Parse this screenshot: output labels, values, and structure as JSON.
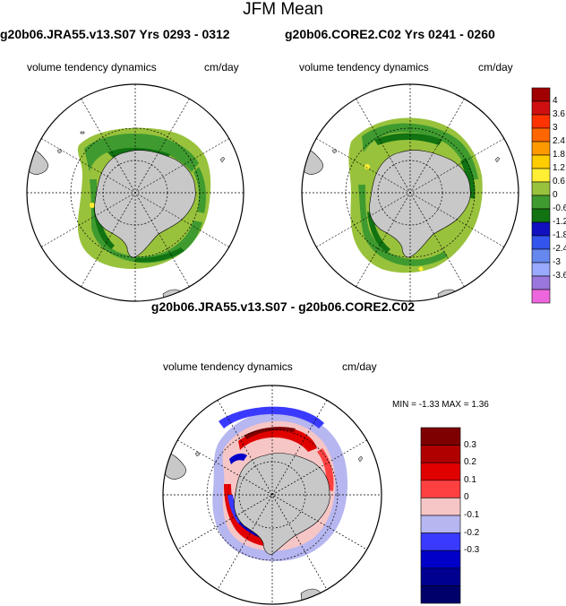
{
  "title": "JFM Mean",
  "panels": [
    {
      "run_title": "g20b06.JRA55.v13.S07  Yrs 0293 - 0312",
      "variable": "volume tendency dynamics",
      "units": "cm/day"
    },
    {
      "run_title": "g20b06.CORE2.C02  Yrs 0241 - 0260",
      "variable": "volume tendency dynamics",
      "units": "cm/day"
    }
  ],
  "diff_panel": {
    "title": "g20b06.JRA55.v13.S07 - g20b06.CORE2.C02",
    "variable": "volume tendency dynamics",
    "units": "cm/day",
    "minmax": "MIN =  -1.33 MAX =   1.36"
  },
  "colorbar_top": {
    "labels": [
      "4",
      "3.6",
      "3",
      "2.4",
      "1.8",
      "1.2",
      "0.6",
      "0",
      "-0.6",
      "-1.2",
      "-1.8",
      "-2.4",
      "-3",
      "-3.6"
    ],
    "colors": [
      "#a00000",
      "#d01010",
      "#ff3300",
      "#ff6600",
      "#ff9900",
      "#ffcc00",
      "#ffee33",
      "#99c23c",
      "#3f9b2f",
      "#117311",
      "#1010c0",
      "#3355ee",
      "#6688ee",
      "#99aaff",
      "#9977dd",
      "#ee66dd"
    ]
  },
  "colorbar_diff": {
    "labels": [
      "0.3",
      "0.2",
      "0.1",
      "0",
      "-0.1",
      "-0.2",
      "-0.3"
    ],
    "colors": [
      "#7f0000",
      "#b00000",
      "#e00000",
      "#ff4040",
      "#f6c6c6",
      "#b6b6f0",
      "#3a3aff",
      "#0000c8",
      "#000090",
      "#00006a"
    ]
  },
  "colors": {
    "land": "#c8c8c8",
    "ocean": "#ffffff"
  }
}
